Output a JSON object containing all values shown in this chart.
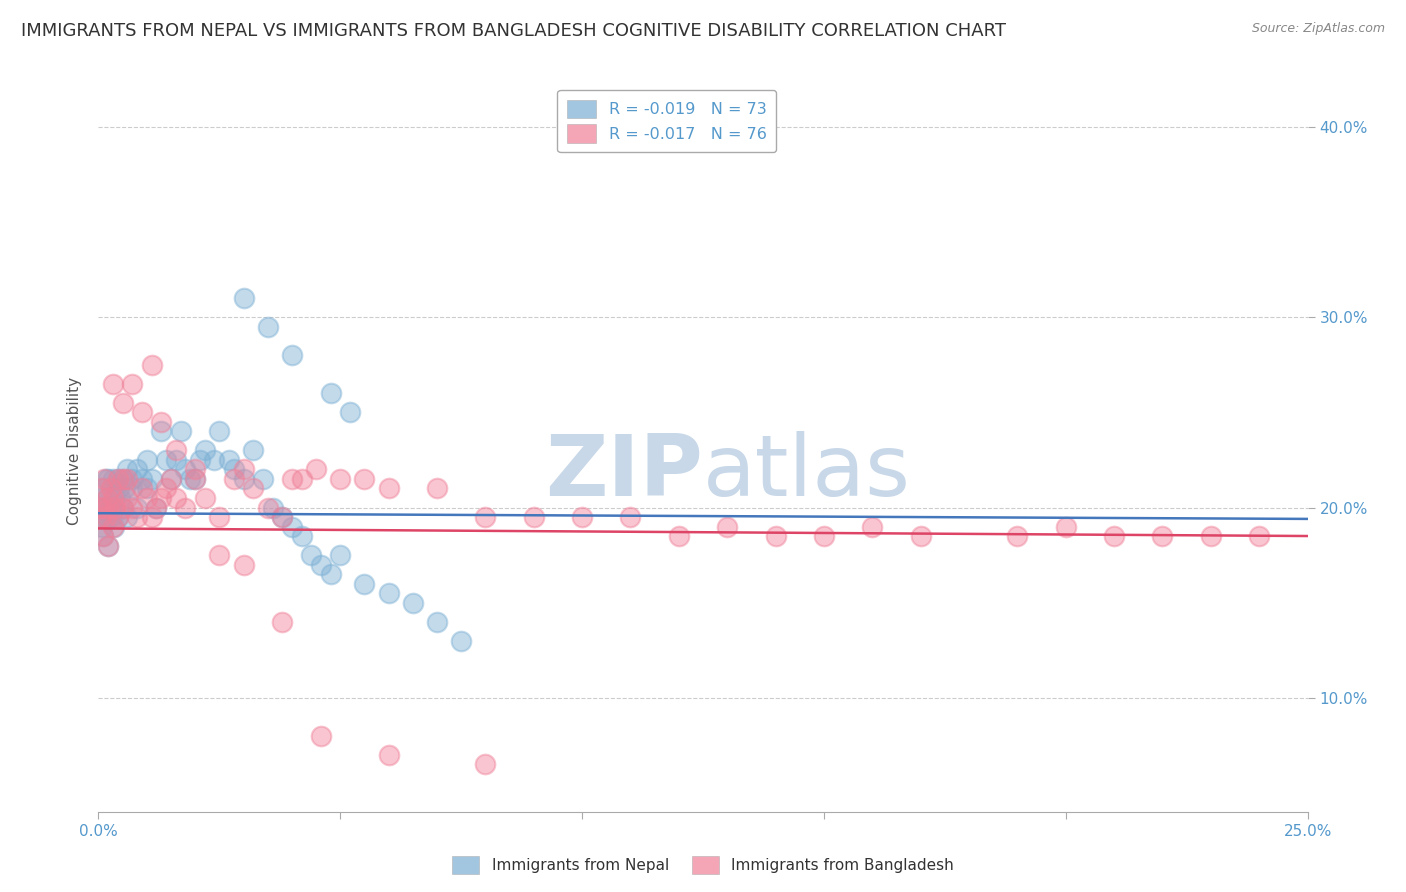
{
  "title": "IMMIGRANTS FROM NEPAL VS IMMIGRANTS FROM BANGLADESH COGNITIVE DISABILITY CORRELATION CHART",
  "source": "Source: ZipAtlas.com",
  "ylabel": "Cognitive Disability",
  "xlim": [
    0.0,
    0.25
  ],
  "ylim": [
    0.04,
    0.42
  ],
  "nepal_R": -0.019,
  "nepal_N": 73,
  "bangladesh_R": -0.017,
  "bangladesh_N": 76,
  "nepal_color": "#7bafd4",
  "bangladesh_color": "#f08098",
  "nepal_line_color": "#4477bb",
  "bangladesh_line_color": "#dd4466",
  "watermark_zip": "ZIP",
  "watermark_atlas": "atlas",
  "watermark_color": "#c8d8e8",
  "background_color": "#ffffff",
  "grid_color": "#cccccc",
  "tick_color": "#5599cc",
  "title_color": "#333333",
  "title_fontsize": 13,
  "nepal_x": [
    0.0003,
    0.0005,
    0.0006,
    0.0008,
    0.001,
    0.001,
    0.0012,
    0.0013,
    0.0015,
    0.0016,
    0.0018,
    0.002,
    0.002,
    0.0022,
    0.0025,
    0.0028,
    0.003,
    0.003,
    0.0032,
    0.0035,
    0.004,
    0.004,
    0.0042,
    0.0045,
    0.005,
    0.005,
    0.0055,
    0.006,
    0.006,
    0.007,
    0.007,
    0.008,
    0.008,
    0.009,
    0.01,
    0.01,
    0.011,
    0.012,
    0.013,
    0.014,
    0.015,
    0.016,
    0.017,
    0.018,
    0.019,
    0.02,
    0.021,
    0.022,
    0.024,
    0.025,
    0.027,
    0.028,
    0.03,
    0.032,
    0.034,
    0.036,
    0.038,
    0.04,
    0.042,
    0.044,
    0.046,
    0.048,
    0.05,
    0.055,
    0.06,
    0.065,
    0.07,
    0.075,
    0.03,
    0.035,
    0.04,
    0.048,
    0.052
  ],
  "nepal_y": [
    0.2,
    0.195,
    0.205,
    0.19,
    0.185,
    0.21,
    0.195,
    0.2,
    0.215,
    0.195,
    0.205,
    0.18,
    0.215,
    0.195,
    0.2,
    0.195,
    0.2,
    0.215,
    0.19,
    0.205,
    0.215,
    0.195,
    0.21,
    0.205,
    0.2,
    0.215,
    0.21,
    0.22,
    0.195,
    0.215,
    0.21,
    0.2,
    0.22,
    0.215,
    0.21,
    0.225,
    0.215,
    0.2,
    0.24,
    0.225,
    0.215,
    0.225,
    0.24,
    0.22,
    0.215,
    0.215,
    0.225,
    0.23,
    0.225,
    0.24,
    0.225,
    0.22,
    0.215,
    0.23,
    0.215,
    0.2,
    0.195,
    0.19,
    0.185,
    0.175,
    0.17,
    0.165,
    0.175,
    0.16,
    0.155,
    0.15,
    0.14,
    0.13,
    0.31,
    0.295,
    0.28,
    0.26,
    0.25
  ],
  "bangladesh_x": [
    0.0003,
    0.0005,
    0.0007,
    0.001,
    0.001,
    0.0012,
    0.0015,
    0.0018,
    0.002,
    0.002,
    0.0025,
    0.003,
    0.003,
    0.0035,
    0.004,
    0.004,
    0.005,
    0.005,
    0.006,
    0.006,
    0.007,
    0.008,
    0.009,
    0.01,
    0.011,
    0.012,
    0.013,
    0.014,
    0.015,
    0.016,
    0.018,
    0.02,
    0.022,
    0.025,
    0.028,
    0.03,
    0.032,
    0.035,
    0.038,
    0.04,
    0.042,
    0.045,
    0.05,
    0.055,
    0.06,
    0.07,
    0.08,
    0.09,
    0.1,
    0.11,
    0.12,
    0.13,
    0.14,
    0.15,
    0.16,
    0.17,
    0.19,
    0.2,
    0.21,
    0.22,
    0.23,
    0.24,
    0.003,
    0.005,
    0.007,
    0.009,
    0.011,
    0.013,
    0.016,
    0.02,
    0.025,
    0.03,
    0.038,
    0.046,
    0.06,
    0.08
  ],
  "bangladesh_y": [
    0.2,
    0.195,
    0.21,
    0.185,
    0.2,
    0.215,
    0.195,
    0.205,
    0.18,
    0.2,
    0.21,
    0.19,
    0.205,
    0.2,
    0.215,
    0.195,
    0.2,
    0.215,
    0.205,
    0.215,
    0.2,
    0.195,
    0.21,
    0.205,
    0.195,
    0.2,
    0.205,
    0.21,
    0.215,
    0.205,
    0.2,
    0.215,
    0.205,
    0.195,
    0.215,
    0.22,
    0.21,
    0.2,
    0.195,
    0.215,
    0.215,
    0.22,
    0.215,
    0.215,
    0.21,
    0.21,
    0.195,
    0.195,
    0.195,
    0.195,
    0.185,
    0.19,
    0.185,
    0.185,
    0.19,
    0.185,
    0.185,
    0.19,
    0.185,
    0.185,
    0.185,
    0.185,
    0.265,
    0.255,
    0.265,
    0.25,
    0.275,
    0.245,
    0.23,
    0.22,
    0.175,
    0.17,
    0.14,
    0.08,
    0.07,
    0.065
  ]
}
